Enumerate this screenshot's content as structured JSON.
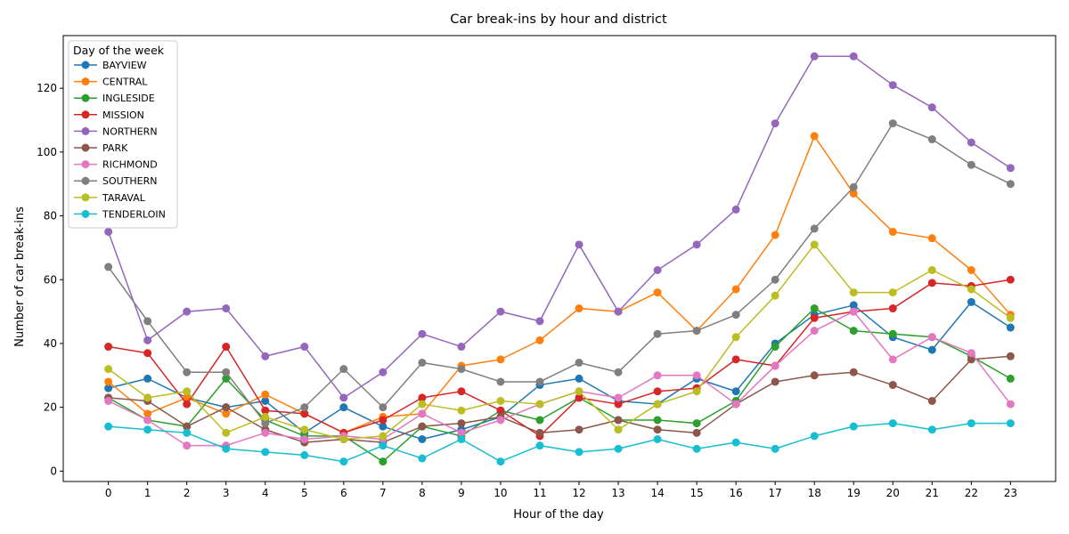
{
  "chart_data": {
    "type": "line",
    "title": "Car break-ins by hour and district",
    "xlabel": "Hour of the day",
    "ylabel": "Number of car break-ins",
    "x": [
      0,
      1,
      2,
      3,
      4,
      5,
      6,
      7,
      8,
      9,
      10,
      11,
      12,
      13,
      14,
      15,
      16,
      17,
      18,
      19,
      20,
      21,
      22,
      23
    ],
    "ylim": [
      -3.25,
      136.5
    ],
    "yticks": [
      0,
      20,
      40,
      60,
      80,
      100,
      120
    ],
    "grid": false,
    "legend": {
      "title": "Day of the week",
      "placement": "top-left"
    },
    "series": [
      {
        "name": "BAYVIEW",
        "color": "#1f77b4",
        "values": [
          26,
          29,
          23,
          20,
          22,
          12,
          20,
          14,
          10,
          13,
          17,
          27,
          29,
          22,
          21,
          29,
          25,
          40,
          49,
          52,
          42,
          38,
          53,
          45
        ]
      },
      {
        "name": "CENTRAL",
        "color": "#ff7f0e",
        "values": [
          28,
          18,
          23,
          18,
          24,
          18,
          12,
          17,
          18,
          33,
          35,
          41,
          51,
          50,
          56,
          44,
          57,
          74,
          105,
          87,
          75,
          73,
          63,
          49
        ]
      },
      {
        "name": "INGLESIDE",
        "color": "#2ca02c",
        "values": [
          23,
          16,
          14,
          29,
          16,
          11,
          11,
          3,
          14,
          11,
          19,
          16,
          23,
          16,
          16,
          15,
          22,
          39,
          51,
          44,
          43,
          42,
          36,
          29
        ]
      },
      {
        "name": "MISSION",
        "color": "#d62728",
        "values": [
          39,
          37,
          21,
          39,
          19,
          18,
          12,
          16,
          23,
          25,
          19,
          11,
          23,
          21,
          25,
          26,
          35,
          33,
          48,
          50,
          51,
          59,
          58,
          60
        ]
      },
      {
        "name": "NORTHERN",
        "color": "#9467bd",
        "values": [
          75,
          41,
          50,
          51,
          36,
          39,
          23,
          31,
          43,
          39,
          50,
          47,
          71,
          50,
          63,
          71,
          82,
          109,
          130,
          130,
          121,
          114,
          103,
          95
        ]
      },
      {
        "name": "PARK",
        "color": "#8c564b",
        "values": [
          23,
          22,
          14,
          20,
          13,
          9,
          10,
          9,
          14,
          15,
          17,
          12,
          13,
          16,
          13,
          12,
          21,
          28,
          30,
          31,
          27,
          22,
          35,
          36
        ]
      },
      {
        "name": "RICHMOND",
        "color": "#e377c2",
        "values": [
          22,
          16,
          8,
          8,
          12,
          10,
          11,
          10,
          18,
          12,
          16,
          21,
          25,
          23,
          30,
          30,
          21,
          33,
          44,
          50,
          35,
          42,
          37,
          21
        ]
      },
      {
        "name": "SOUTHERN",
        "color": "#7f7f7f",
        "values": [
          64,
          47,
          31,
          31,
          15,
          20,
          32,
          20,
          34,
          32,
          28,
          28,
          34,
          31,
          43,
          44,
          49,
          60,
          76,
          89,
          109,
          104,
          96,
          90
        ]
      },
      {
        "name": "TARAVAL",
        "color": "#bcbd22",
        "values": [
          32,
          23,
          25,
          12,
          17,
          13,
          10,
          11,
          21,
          19,
          22,
          21,
          25,
          13,
          21,
          25,
          42,
          55,
          71,
          56,
          56,
          63,
          57,
          48
        ]
      },
      {
        "name": "TENDERLOIN",
        "color": "#17becf",
        "values": [
          14,
          13,
          12,
          7,
          6,
          5,
          3,
          8,
          4,
          10,
          3,
          8,
          6,
          7,
          10,
          7,
          9,
          7,
          11,
          14,
          15,
          13,
          15,
          15
        ]
      }
    ]
  }
}
